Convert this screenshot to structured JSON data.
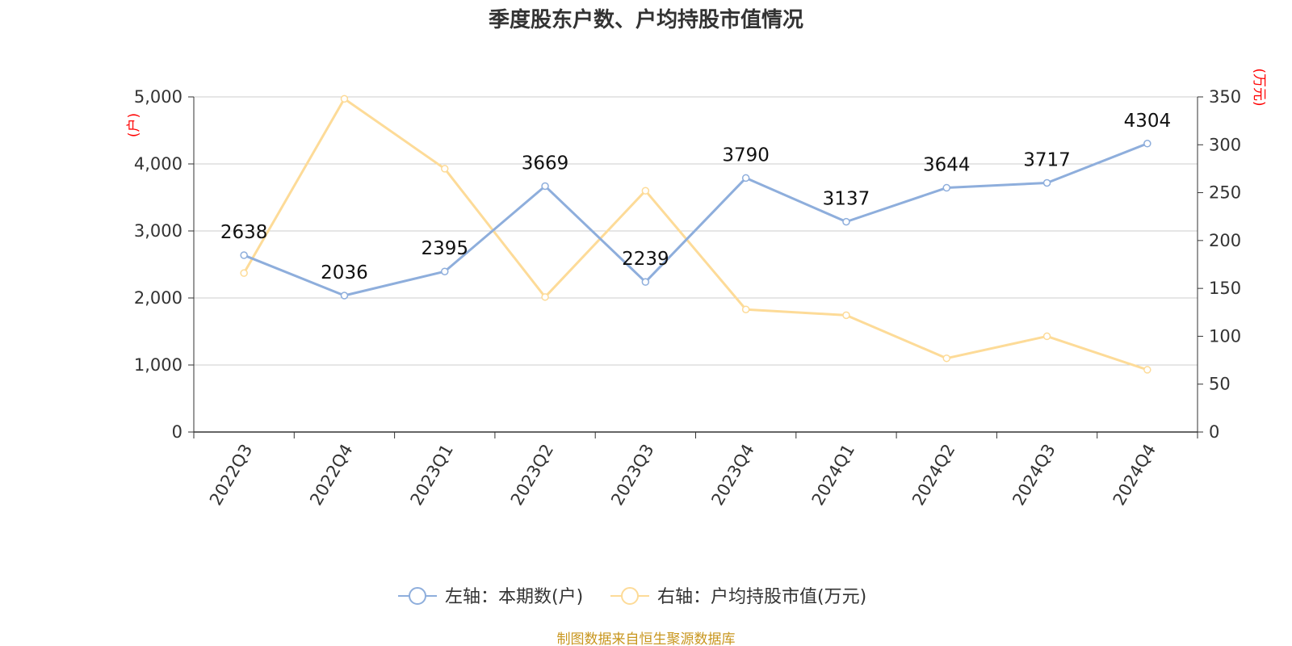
{
  "title": "季度股东户数、户均持股市值情况",
  "source": "制图数据来自恒生聚源数据库",
  "colors": {
    "left_series": "#8eaedc",
    "right_series": "#fddb98",
    "grid": "#cccccc",
    "axis": "#333333",
    "unit": "#ff0000",
    "source": "#c8961e"
  },
  "chart_data": {
    "type": "line",
    "categories": [
      "2022Q3",
      "2022Q4",
      "2023Q1",
      "2023Q2",
      "2023Q3",
      "2023Q4",
      "2024Q1",
      "2024Q2",
      "2024Q3",
      "2024Q4"
    ],
    "y_left": {
      "unit": "(户)",
      "min": 0,
      "max": 5000,
      "ticks": [
        0,
        1000,
        2000,
        3000,
        4000,
        5000
      ],
      "tick_labels": [
        "0",
        "1,000",
        "2,000",
        "3,000",
        "4,000",
        "5,000"
      ]
    },
    "y_right": {
      "unit": "(万元)",
      "min": 0,
      "max": 350,
      "ticks": [
        0,
        50,
        100,
        150,
        200,
        250,
        300,
        350
      ],
      "tick_labels": [
        "0",
        "50",
        "100",
        "150",
        "200",
        "250",
        "300",
        "350"
      ]
    },
    "grid": true,
    "legend_position": "bottom-center",
    "series": [
      {
        "name": "左轴：本期数(户)",
        "axis": "left",
        "values": [
          2638,
          2036,
          2395,
          3669,
          2239,
          3790,
          3137,
          3644,
          3717,
          4304
        ],
        "data_labels": [
          "2638",
          "2036",
          "2395",
          "3669",
          "2239",
          "3790",
          "3137",
          "3644",
          "3717",
          "4304"
        ]
      },
      {
        "name": "右轴：户均持股市值(万元)",
        "axis": "right",
        "values": [
          166,
          348,
          275,
          141,
          252,
          128,
          122,
          77,
          100,
          65
        ]
      }
    ]
  }
}
